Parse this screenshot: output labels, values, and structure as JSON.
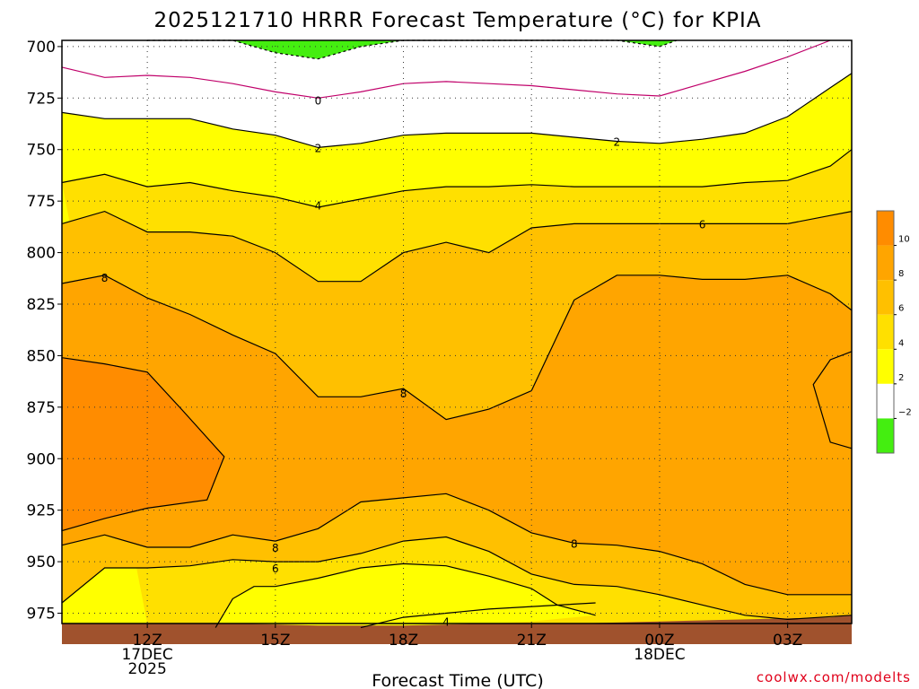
{
  "chart_data": {
    "type": "heatmap",
    "title": "2025121710 HRRR Forecast Temperature (°C) for KPIA",
    "xlabel": "Forecast Time (UTC)",
    "ylabel": "",
    "watermark": "coolwx.com/modelts",
    "y_scale": "pressure (inverted)",
    "ylim": [
      980,
      697
    ],
    "y_ticks": [
      700,
      725,
      750,
      775,
      800,
      825,
      850,
      875,
      900,
      925,
      950,
      975
    ],
    "x_ticks": [
      {
        "hour": 12,
        "lines": [
          "12Z",
          "17DEC",
          "2025"
        ]
      },
      {
        "hour": 15,
        "lines": [
          "15Z"
        ]
      },
      {
        "hour": 18,
        "lines": [
          "18Z"
        ]
      },
      {
        "hour": 21,
        "lines": [
          "21Z"
        ]
      },
      {
        "hour": 24,
        "lines": [
          "00Z",
          "18DEC"
        ]
      },
      {
        "hour": 27,
        "lines": [
          "03Z"
        ]
      }
    ],
    "grid": true,
    "fill_colors": {
      "below_-2": "#44ee10",
      "-2_to_0": "#ffffff",
      "0_to_2": "#ffffff",
      "2_to_4": "#ffff00",
      "4_to_6": "#ffe000",
      "6_to_8": "#ffc000",
      "8_to_10": "#ffa500",
      "10_to_12": "#ff8c00",
      "ground": "#a0522d"
    },
    "contour_labels": [
      {
        "value": "0",
        "x": 16,
        "p": 726
      },
      {
        "value": "2",
        "x": 16,
        "p": 749
      },
      {
        "value": "2",
        "x": 23.0,
        "p": 746
      },
      {
        "value": "4",
        "x": 16,
        "p": 777
      },
      {
        "value": "6",
        "x": 25.0,
        "p": 786
      },
      {
        "value": "8",
        "x": 11.0,
        "p": 812
      },
      {
        "value": "8",
        "x": 18,
        "p": 868
      },
      {
        "value": "8",
        "x": 15,
        "p": 943
      },
      {
        "value": "8",
        "x": 22.0,
        "p": 941
      },
      {
        "value": "6",
        "x": 15,
        "p": 953
      },
      {
        "value": "4",
        "x": 19.0,
        "p": 979
      }
    ],
    "colorbar": {
      "ticks": [
        "10",
        "8",
        "6",
        "4",
        "2",
        "−2"
      ],
      "colors": [
        "#ff8c00",
        "#ffa500",
        "#ffc000",
        "#ffe000",
        "#ffff00",
        "#ffffff",
        "#44ee10"
      ]
    }
  }
}
